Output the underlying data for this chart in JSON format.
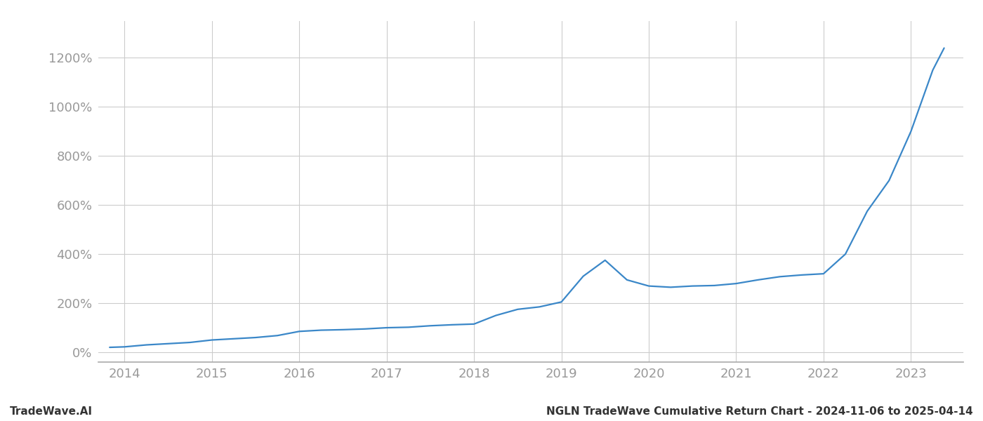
{
  "title": "NGLN TradeWave Cumulative Return Chart - 2024-11-06 to 2025-04-14",
  "watermark": "TradeWave.AI",
  "line_color": "#3a87c8",
  "background_color": "#ffffff",
  "grid_color": "#cccccc",
  "x_years": [
    2014,
    2015,
    2016,
    2017,
    2018,
    2019,
    2020,
    2021,
    2022,
    2023
  ],
  "x_data": [
    2013.83,
    2014.0,
    2014.25,
    2014.5,
    2014.75,
    2015.0,
    2015.25,
    2015.5,
    2015.75,
    2016.0,
    2016.25,
    2016.5,
    2016.75,
    2017.0,
    2017.25,
    2017.5,
    2017.75,
    2018.0,
    2018.25,
    2018.5,
    2018.75,
    2019.0,
    2019.25,
    2019.5,
    2019.75,
    2020.0,
    2020.25,
    2020.5,
    2020.75,
    2021.0,
    2021.25,
    2021.5,
    2021.75,
    2022.0,
    2022.25,
    2022.5,
    2022.75,
    2023.0,
    2023.25,
    2023.38
  ],
  "y_data": [
    20,
    22,
    30,
    35,
    40,
    50,
    55,
    60,
    68,
    85,
    90,
    92,
    95,
    100,
    102,
    108,
    112,
    115,
    150,
    175,
    185,
    205,
    310,
    375,
    295,
    270,
    265,
    270,
    272,
    280,
    295,
    308,
    315,
    320,
    400,
    575,
    700,
    900,
    1150,
    1240
  ],
  "yticks": [
    0,
    200,
    400,
    600,
    800,
    1000,
    1200
  ],
  "ylim": [
    -40,
    1350
  ],
  "xlim": [
    2013.7,
    2023.6
  ],
  "tick_color": "#999999",
  "spine_color": "#aaaaaa",
  "fontsize_ticks": 13,
  "fontsize_footer": 11,
  "line_width": 1.6
}
